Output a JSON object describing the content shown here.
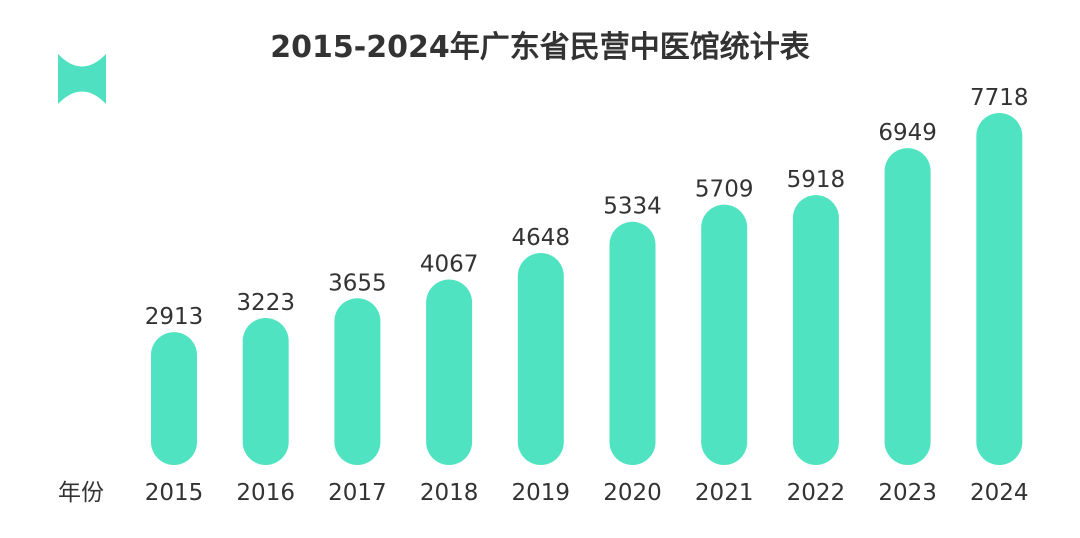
{
  "chart_data": {
    "type": "bar",
    "title": "2015-2024年广东省民营中医馆统计表",
    "xlabel": "年份",
    "ylabel": "",
    "categories": [
      "2015",
      "2016",
      "2017",
      "2018",
      "2019",
      "2020",
      "2021",
      "2022",
      "2023",
      "2024"
    ],
    "series": [
      {
        "values": [
          2913,
          3223,
          3655,
          4067,
          4648,
          5334,
          5709,
          5918,
          6949,
          7718
        ]
      }
    ],
    "ylim": [
      0,
      7718
    ],
    "grid": false,
    "legend": "none",
    "colors": {
      "bar": "#50E3C2",
      "text": "#333333",
      "logo": "#4FE0C1"
    }
  },
  "logo": {
    "icon": "stylized-h-logo-icon"
  }
}
